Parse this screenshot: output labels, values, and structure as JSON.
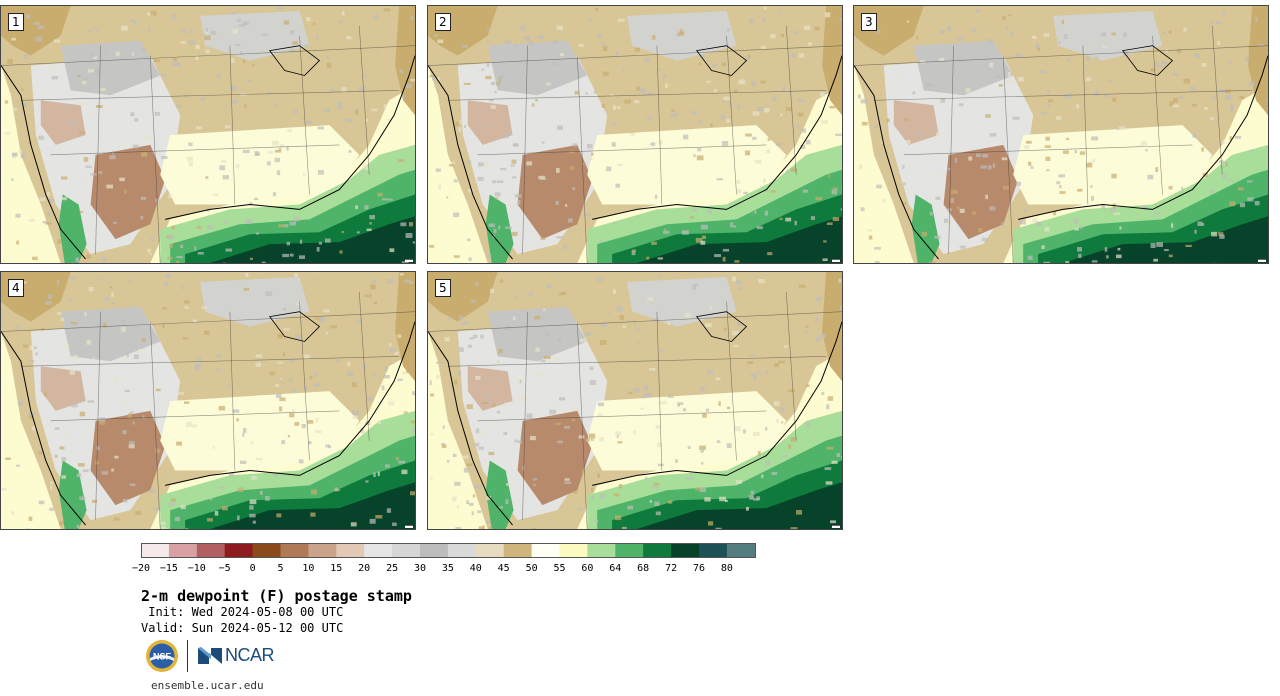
{
  "panels": [
    {
      "label": "1"
    },
    {
      "label": "2"
    },
    {
      "label": "3"
    },
    {
      "label": "4"
    },
    {
      "label": "5"
    }
  ],
  "colorbar": {
    "colors": [
      "#f6e9ea",
      "#d8a2a5",
      "#b25f63",
      "#8e1b20",
      "#8a4a1c",
      "#b07a58",
      "#c9a48a",
      "#e3c8b6",
      "#e6e6e6",
      "#d6d6d6",
      "#bcbcbc",
      "#dadada",
      "#e7dcc2",
      "#cfb47c",
      "#fffff4",
      "#fbfbc1",
      "#a8dd9a",
      "#4fb46a",
      "#0e7a3c",
      "#06432a",
      "#1e5058",
      "#557c7e"
    ],
    "tick_labels": [
      "−20",
      "−15",
      "−10",
      "−5",
      "0",
      "5",
      "10",
      "15",
      "20",
      "25",
      "30",
      "35",
      "40",
      "45",
      "50",
      "55",
      "60",
      "64",
      "68",
      "72",
      "76",
      "80"
    ]
  },
  "title": "2-m dewpoint (F) postage stamp",
  "init_line": " Init: Wed 2024-05-08 00 UTC",
  "valid_line": "Valid: Sun 2024-05-12 00 UTC",
  "logos": {
    "nsf": "NSF",
    "ncar": "NCAR"
  },
  "site": "ensemble.ucar.edu"
}
